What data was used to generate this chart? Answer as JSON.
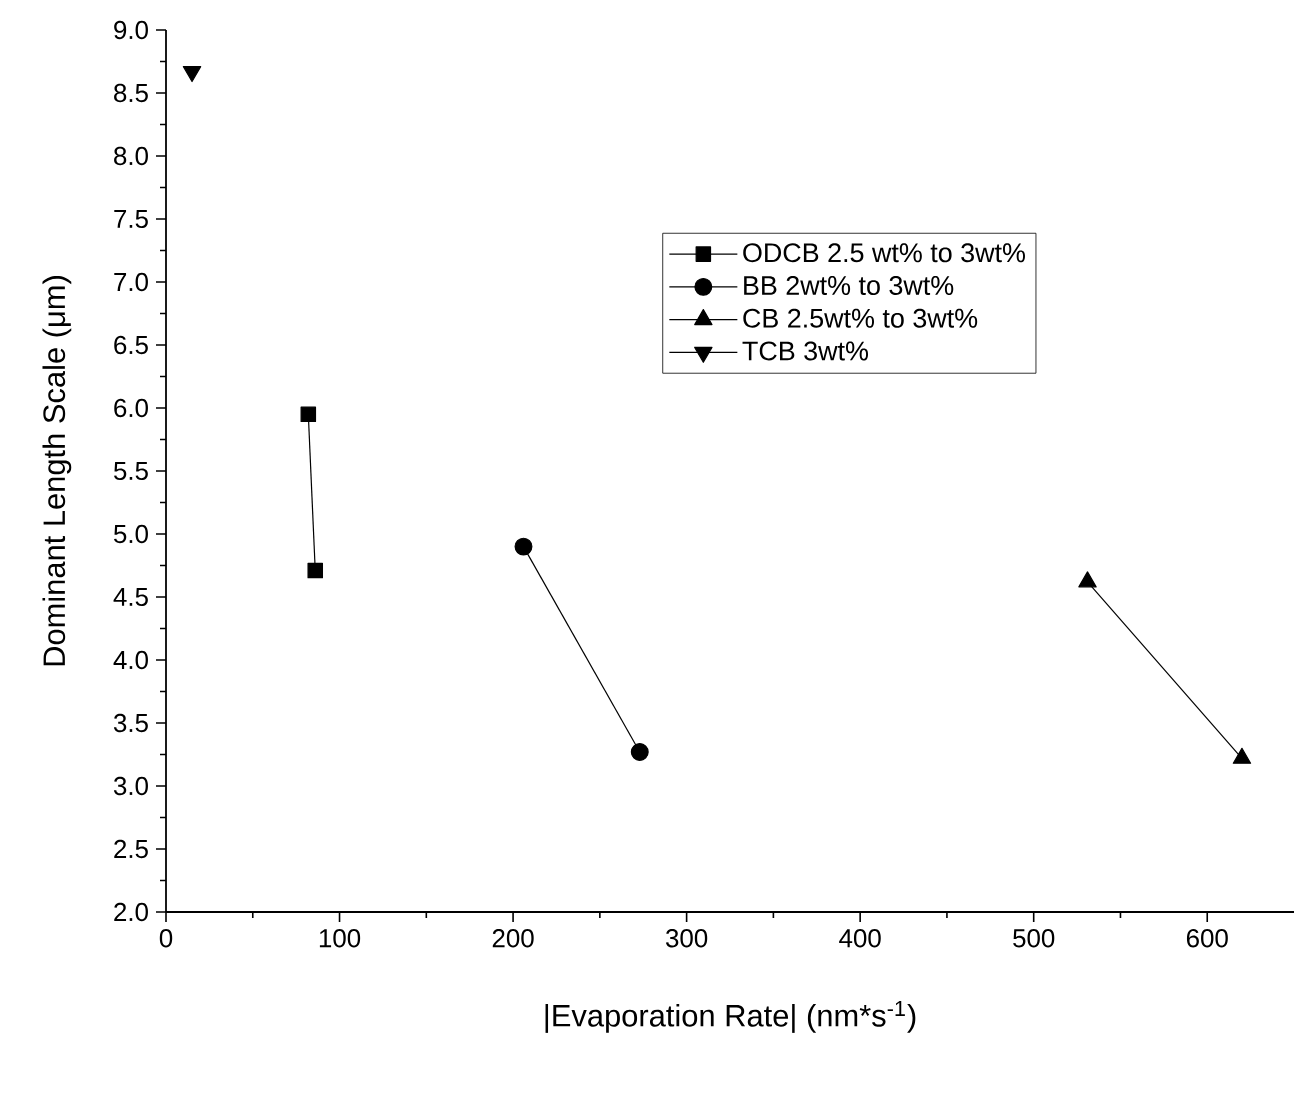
{
  "chart_data": {
    "type": "line",
    "xlabel": "|Evaporation Rate| (nm*s$^{-1}$)",
    "ylabel": "Dominant Length Scale (μm)",
    "xlim": [
      0,
      650
    ],
    "xticks": [
      0,
      100,
      200,
      300,
      400,
      500,
      600
    ],
    "ylim": [
      2.0,
      9.0
    ],
    "yticks": [
      {
        "value": 2.0,
        "label": "2.0"
      },
      {
        "value": 2.5,
        "label": "2.5"
      },
      {
        "value": 3.0,
        "label": "3.0"
      },
      {
        "value": 3.5,
        "label": "3.5"
      },
      {
        "value": 4.0,
        "label": "4.0"
      },
      {
        "value": 4.5,
        "label": "4.5"
      },
      {
        "value": 5.0,
        "label": "5.0"
      },
      {
        "value": 5.5,
        "label": "5.5"
      },
      {
        "value": 6.0,
        "label": "6.0"
      },
      {
        "value": 6.5,
        "label": "6.5"
      },
      {
        "value": 7.0,
        "label": "7.0"
      },
      {
        "value": 7.5,
        "label": "7.5"
      },
      {
        "value": 8.0,
        "label": "8.0"
      },
      {
        "value": 8.5,
        "label": "8.5"
      },
      {
        "value": 9.0,
        "label": "9.0"
      }
    ],
    "grid": false,
    "legend": "right",
    "line_style": "solid",
    "series": [
      {
        "name": "ODCB 2.5 wt% to 3wt%",
        "color": "#000000",
        "marker": "square",
        "x": [
          82,
          86
        ],
        "values": [
          5.95,
          4.71
        ]
      },
      {
        "name": "BB 2wt% to 3wt%",
        "color": "#000000",
        "marker": "circle",
        "x": [
          206,
          273
        ],
        "values": [
          4.9,
          3.27
        ]
      },
      {
        "name": "CB 2.5wt% to 3wt%",
        "color": "#000000",
        "marker": "triangle",
        "x": [
          531,
          620
        ],
        "values": [
          4.62,
          3.22
        ]
      },
      {
        "name": "TCB 3wt%",
        "color": "#000000",
        "marker": "triangle-down",
        "x": [
          15
        ],
        "values": [
          8.67
        ]
      }
    ]
  }
}
